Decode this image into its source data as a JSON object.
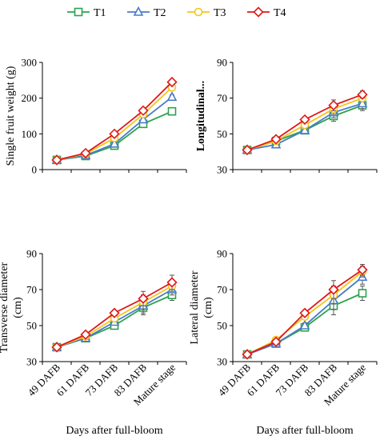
{
  "legend": [
    {
      "label": "T1",
      "color": "#2ca24d",
      "marker": "square"
    },
    {
      "label": "T2",
      "color": "#4a7bc8",
      "marker": "triangle"
    },
    {
      "label": "T3",
      "color": "#f5c518",
      "marker": "circle"
    },
    {
      "label": "T4",
      "color": "#e01818",
      "marker": "diamond"
    }
  ],
  "chart_data": [
    {
      "type": "line",
      "ylabel": "Single fruit weight (g)",
      "ylabel_bold": false,
      "ylim": [
        0,
        300
      ],
      "yticks": [
        0,
        100,
        200,
        300
      ],
      "categories": [
        "49 DAFB",
        "61 DAFB",
        "73 DAFB",
        "83 DAFB",
        "Mature stage"
      ],
      "show_xticklabels": false,
      "xlabel": "",
      "series": [
        {
          "name": "T1",
          "values": [
            27,
            38,
            67,
            128,
            163
          ],
          "errors": [
            0,
            2,
            4,
            6,
            6
          ]
        },
        {
          "name": "T2",
          "values": [
            27,
            40,
            72,
            140,
            203
          ],
          "errors": [
            0,
            2,
            4,
            6,
            6
          ]
        },
        {
          "name": "T3",
          "values": [
            27,
            44,
            88,
            155,
            230
          ],
          "errors": [
            0,
            2,
            4,
            6,
            8
          ]
        },
        {
          "name": "T4",
          "values": [
            27,
            46,
            100,
            165,
            245
          ],
          "errors": [
            0,
            2,
            4,
            6,
            6
          ]
        }
      ]
    },
    {
      "type": "line",
      "ylabel": "Longitudinal...",
      "ylabel_bold": true,
      "ylim": [
        30,
        90
      ],
      "yticks": [
        30,
        50,
        70,
        90
      ],
      "categories": [
        "49 DAFB",
        "61 DAFB",
        "73 DAFB",
        "83 DAFB",
        "Mature stage"
      ],
      "show_xticklabels": false,
      "xlabel": "",
      "series": [
        {
          "name": "T1",
          "values": [
            41,
            46,
            52,
            60,
            66
          ],
          "errors": [
            1,
            1,
            1.5,
            3,
            3
          ]
        },
        {
          "name": "T2",
          "values": [
            41,
            44,
            52,
            62,
            67
          ],
          "errors": [
            1,
            1,
            1.5,
            3,
            3
          ]
        },
        {
          "name": "T3",
          "values": [
            41,
            46,
            55,
            64,
            70
          ],
          "errors": [
            1,
            1,
            1.5,
            3,
            2
          ]
        },
        {
          "name": "T4",
          "values": [
            41,
            47,
            58,
            66,
            72
          ],
          "errors": [
            1,
            1,
            1.5,
            3,
            2
          ]
        }
      ]
    },
    {
      "type": "line",
      "ylabel": "Transverse diameter (cm)",
      "ylabel_bold": false,
      "ylim": [
        30,
        90
      ],
      "yticks": [
        30,
        50,
        70,
        90
      ],
      "categories": [
        "49 DAFB",
        "61 DAFB",
        "73 DAFB",
        "83 DAFB",
        "Mature stage"
      ],
      "show_xticklabels": true,
      "xlabel": "Days after full-bloom",
      "series": [
        {
          "name": "T1",
          "values": [
            38,
            43,
            50,
            60,
            67
          ],
          "errors": [
            1,
            1,
            1.5,
            4,
            3
          ]
        },
        {
          "name": "T2",
          "values": [
            38,
            43,
            52,
            61,
            70
          ],
          "errors": [
            1,
            1,
            1.5,
            4,
            3
          ]
        },
        {
          "name": "T3",
          "values": [
            38,
            44,
            54,
            63,
            72
          ],
          "errors": [
            1,
            1,
            1.5,
            4,
            3
          ]
        },
        {
          "name": "T4",
          "values": [
            38,
            45,
            57,
            65,
            74
          ],
          "errors": [
            1,
            1,
            1.5,
            4,
            4
          ]
        }
      ]
    },
    {
      "type": "line",
      "ylabel": "Lateral diameter (cm)",
      "ylabel_bold": false,
      "ylim": [
        30,
        90
      ],
      "yticks": [
        30,
        50,
        70,
        90
      ],
      "categories": [
        "49 DAFB",
        "61 DAFB",
        "73 DAFB",
        "83 DAFB",
        "Mature stage"
      ],
      "show_xticklabels": true,
      "xlabel": "Days after full-bloom",
      "series": [
        {
          "name": "T1",
          "values": [
            34,
            40,
            49,
            61,
            68
          ],
          "errors": [
            1,
            1,
            1.5,
            5,
            4
          ]
        },
        {
          "name": "T2",
          "values": [
            34,
            40,
            50,
            64,
            77
          ],
          "errors": [
            1,
            1,
            1.5,
            5,
            4
          ]
        },
        {
          "name": "T3",
          "values": [
            34,
            42,
            55,
            67,
            80
          ],
          "errors": [
            1,
            1,
            1.5,
            5,
            3
          ]
        },
        {
          "name": "T4",
          "values": [
            34,
            41,
            57,
            70,
            81
          ],
          "errors": [
            1,
            1,
            1.5,
            5,
            3
          ]
        }
      ]
    }
  ]
}
